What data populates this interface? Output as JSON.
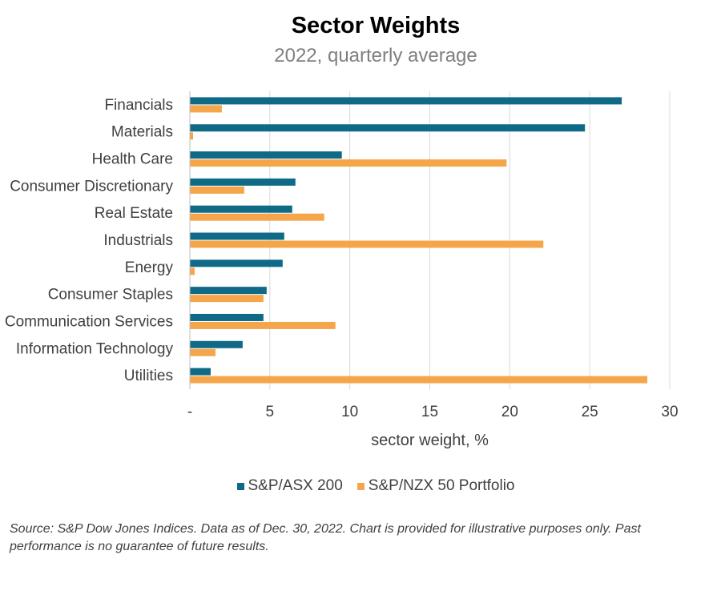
{
  "chart_data": {
    "type": "bar",
    "orientation": "horizontal",
    "title": "Sector Weights",
    "subtitle": "2022, quarterly average",
    "xlabel": "sector weight, %",
    "ylabel": "",
    "xlim": [
      0,
      30
    ],
    "xticks": [
      {
        "value": 0,
        "label": "-"
      },
      {
        "value": 5,
        "label": "5"
      },
      {
        "value": 10,
        "label": "10"
      },
      {
        "value": 15,
        "label": "15"
      },
      {
        "value": 20,
        "label": "20"
      },
      {
        "value": 25,
        "label": "25"
      },
      {
        "value": 30,
        "label": "30"
      }
    ],
    "grid": "vertical",
    "legend_position": "bottom",
    "categories": [
      "Financials",
      "Materials",
      "Health Care",
      "Consumer Discretionary",
      "Real Estate",
      "Industrials",
      "Energy",
      "Consumer Staples",
      "Communication Services",
      "Information Technology",
      "Utilities"
    ],
    "series": [
      {
        "name": "S&P/ASX 200",
        "color": "#0e6a86",
        "values": [
          27.0,
          24.7,
          9.5,
          6.6,
          6.4,
          5.9,
          5.8,
          4.8,
          4.6,
          3.3,
          1.3
        ]
      },
      {
        "name": "S&P/NZX 50 Portfolio",
        "color": "#f5a64a",
        "values": [
          2.0,
          0.2,
          19.8,
          3.4,
          8.4,
          22.1,
          0.3,
          4.6,
          9.1,
          1.6,
          28.6
        ]
      }
    ]
  },
  "source_note": "Source: S&P Dow Jones Indices. Data as of Dec. 30, 2022.  Chart is provided for illustrative purposes only. Past performance is no guarantee of future results."
}
